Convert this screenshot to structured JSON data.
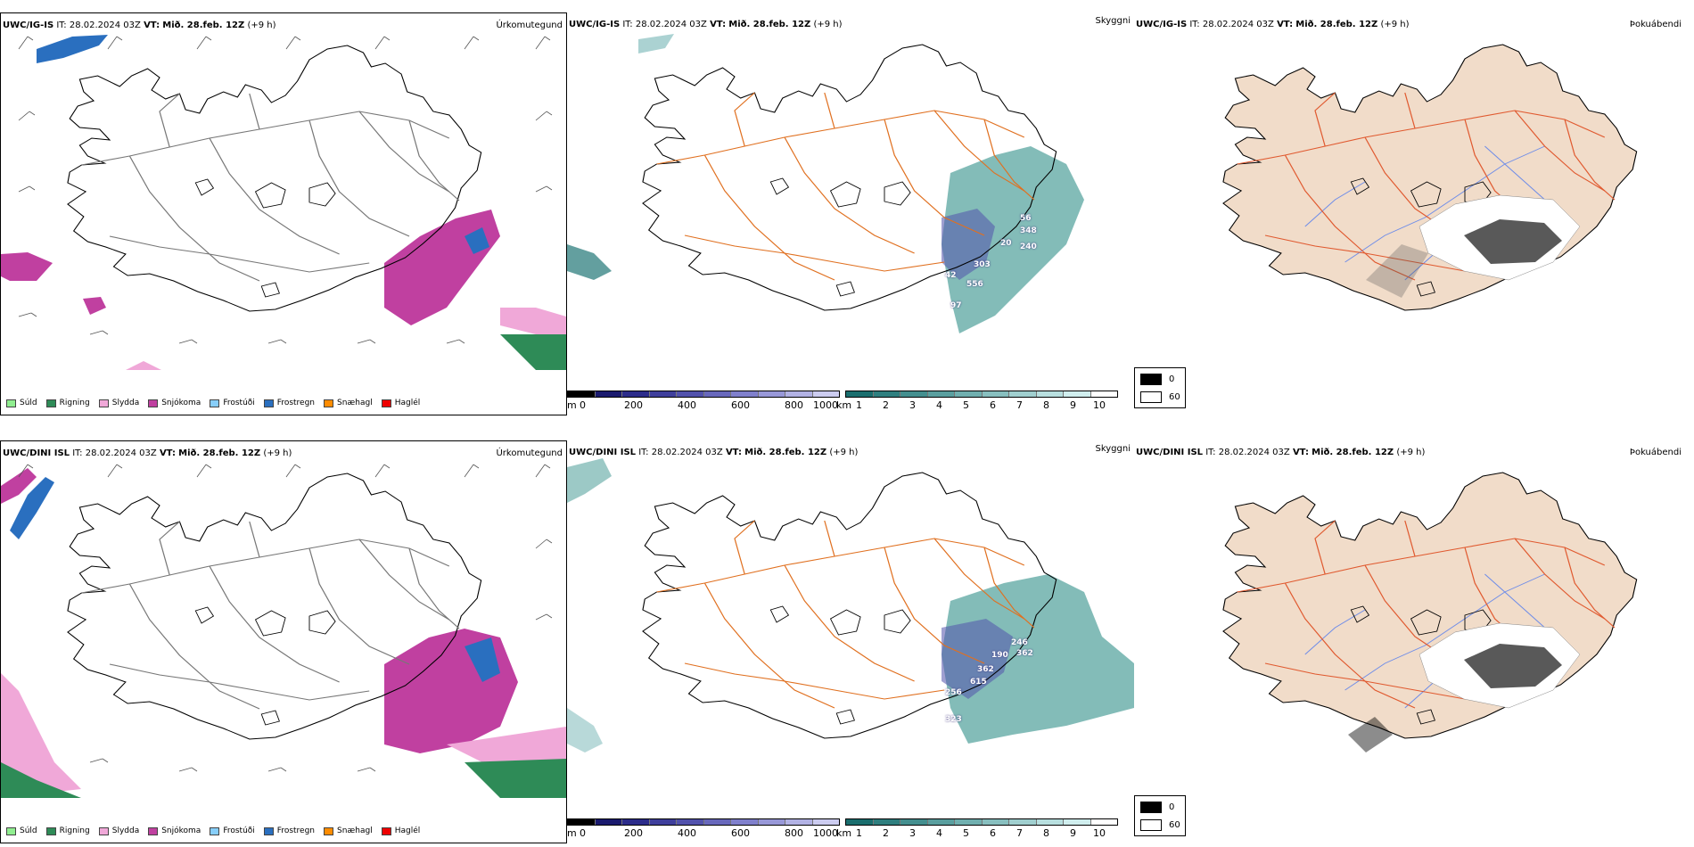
{
  "rows": [
    {
      "model": "UWC/IG-IS",
      "it_label": "IT:",
      "it_value": "28.02.2024 03Z",
      "vt_label": "VT:",
      "vt_value": "Mið. 28.feb. 12Z",
      "lead": "(+9 h)",
      "visibility_labels": [
        "56",
        "348",
        "240",
        "20",
        "303",
        "42",
        "556",
        "97"
      ]
    },
    {
      "model": "UWC/DINI ISL",
      "it_label": "IT:",
      "it_value": "28.02.2024 03Z",
      "vt_label": "VT:",
      "vt_value": "Mið. 28.feb. 12Z",
      "lead": "(+9 h)",
      "visibility_labels": [
        "246",
        "362",
        "190",
        "362",
        "615",
        "256",
        "323"
      ]
    }
  ],
  "panel_titles": {
    "precip_type": "Úrkomutegund",
    "visibility": "Skyggni",
    "fog": "Þokuábendi"
  },
  "precip_legend": [
    {
      "label": "Súld",
      "color": "#90ee90"
    },
    {
      "label": "Rigning",
      "color": "#2e8b57"
    },
    {
      "label": "Slydda",
      "color": "#f0a8d8"
    },
    {
      "label": "Snjókoma",
      "color": "#c040a0"
    },
    {
      "label": "Frostúði",
      "color": "#87cefa"
    },
    {
      "label": "Frostregn",
      "color": "#2a6fbf"
    },
    {
      "label": "Snæhagl",
      "color": "#ff8c00"
    },
    {
      "label": "Haglél",
      "color": "#ee0000"
    }
  ],
  "height_scale": {
    "unit": "m",
    "ticks": [
      "0",
      "200",
      "400",
      "600",
      "800",
      "1000"
    ],
    "colors": [
      "#000000",
      "#1a1a6e",
      "#2c2c8a",
      "#3f3f9c",
      "#5252ac",
      "#6868bc",
      "#8080cc",
      "#9898d8",
      "#b2b2e4",
      "#ccccf0"
    ]
  },
  "visibility_scale": {
    "unit": "km",
    "ticks": [
      "1",
      "2",
      "3",
      "4",
      "5",
      "6",
      "7",
      "8",
      "9",
      "10"
    ],
    "colors": [
      "#1a6e6e",
      "#2f7f7f",
      "#448f8f",
      "#5a9f9f",
      "#70afaf",
      "#88bfbf",
      "#a0cfcf",
      "#b8dfdf",
      "#d0eeee",
      "#ffffff"
    ]
  },
  "fog_legend": [
    {
      "label": "0",
      "color": "#000000"
    },
    {
      "label": "60",
      "color": "#ffffff"
    }
  ],
  "colors": {
    "island_outline": "#000000",
    "roads": "#e07020",
    "rivers": "#6f8de8",
    "land_fog": "#f1dcc9",
    "snow": "#c040a0",
    "sleet": "#f0a8d8",
    "rain": "#2e8b57",
    "freezing": "#2a6fbf",
    "vis_teal": "#5aa5a0"
  }
}
